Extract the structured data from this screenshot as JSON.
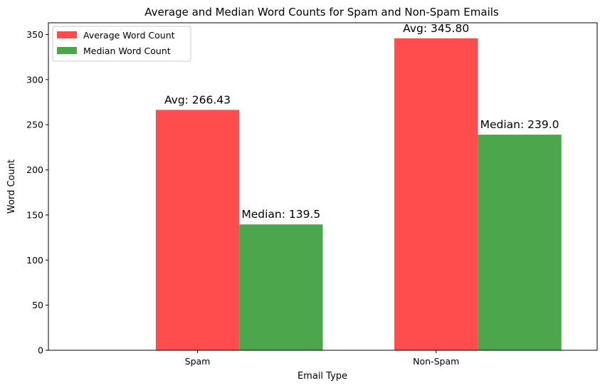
{
  "chart_data": {
    "type": "bar",
    "title": "Average and Median Word Counts for Spam and Non-Spam Emails",
    "xlabel": "Email Type",
    "ylabel": "Word Count",
    "categories": [
      "Spam",
      "Non-Spam"
    ],
    "series": [
      {
        "name": "Average Word Count",
        "values": [
          266.43,
          345.8
        ],
        "labels": [
          "Avg: 266.43",
          "Avg: 345.80"
        ],
        "color": "#ff4c4c"
      },
      {
        "name": "Median Word Count",
        "values": [
          139.5,
          239.0
        ],
        "labels": [
          "Median: 139.5",
          "Median: 239.0"
        ],
        "color": "#4ca64c"
      }
    ],
    "ylim": [
      0,
      363
    ],
    "yticks": [
      0,
      50,
      100,
      150,
      200,
      250,
      300,
      350
    ],
    "legend": "top-left",
    "grid": false
  }
}
